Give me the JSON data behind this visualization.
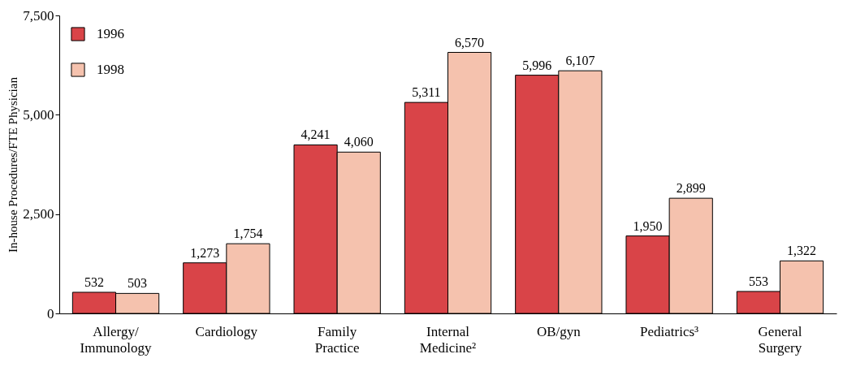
{
  "chart_data": {
    "type": "bar",
    "ylabel": "In-house Procedures/FTE Physician",
    "categories": [
      "Allergy/\nImmunology",
      "Cardiology",
      "Family\nPractice",
      "Internal\nMedicine²",
      "OB/gyn",
      "Pediatrics³",
      "General\nSurgery"
    ],
    "series": [
      {
        "name": "1996",
        "color": "#d94448",
        "values": [
          532,
          1273,
          4241,
          5311,
          5996,
          1950,
          553
        ],
        "value_labels": [
          "532",
          "1,273",
          "4,241",
          "5,311",
          "5,996",
          "1,950",
          "553"
        ]
      },
      {
        "name": "1998",
        "color": "#f5c2ae",
        "values": [
          503,
          1754,
          4060,
          6570,
          6107,
          2899,
          1322
        ],
        "value_labels": [
          "503",
          "1,754",
          "4,060",
          "6,570",
          "6,107",
          "2,899",
          "1,322"
        ]
      }
    ],
    "ylim": [
      0,
      7500
    ],
    "yticks": [
      0,
      {
        "value": 2500,
        "label": "2,500"
      },
      {
        "value": 5000,
        "label": "5,000"
      },
      {
        "value": 7500,
        "label": "7,500"
      }
    ],
    "grid": false,
    "legend": "top left"
  }
}
